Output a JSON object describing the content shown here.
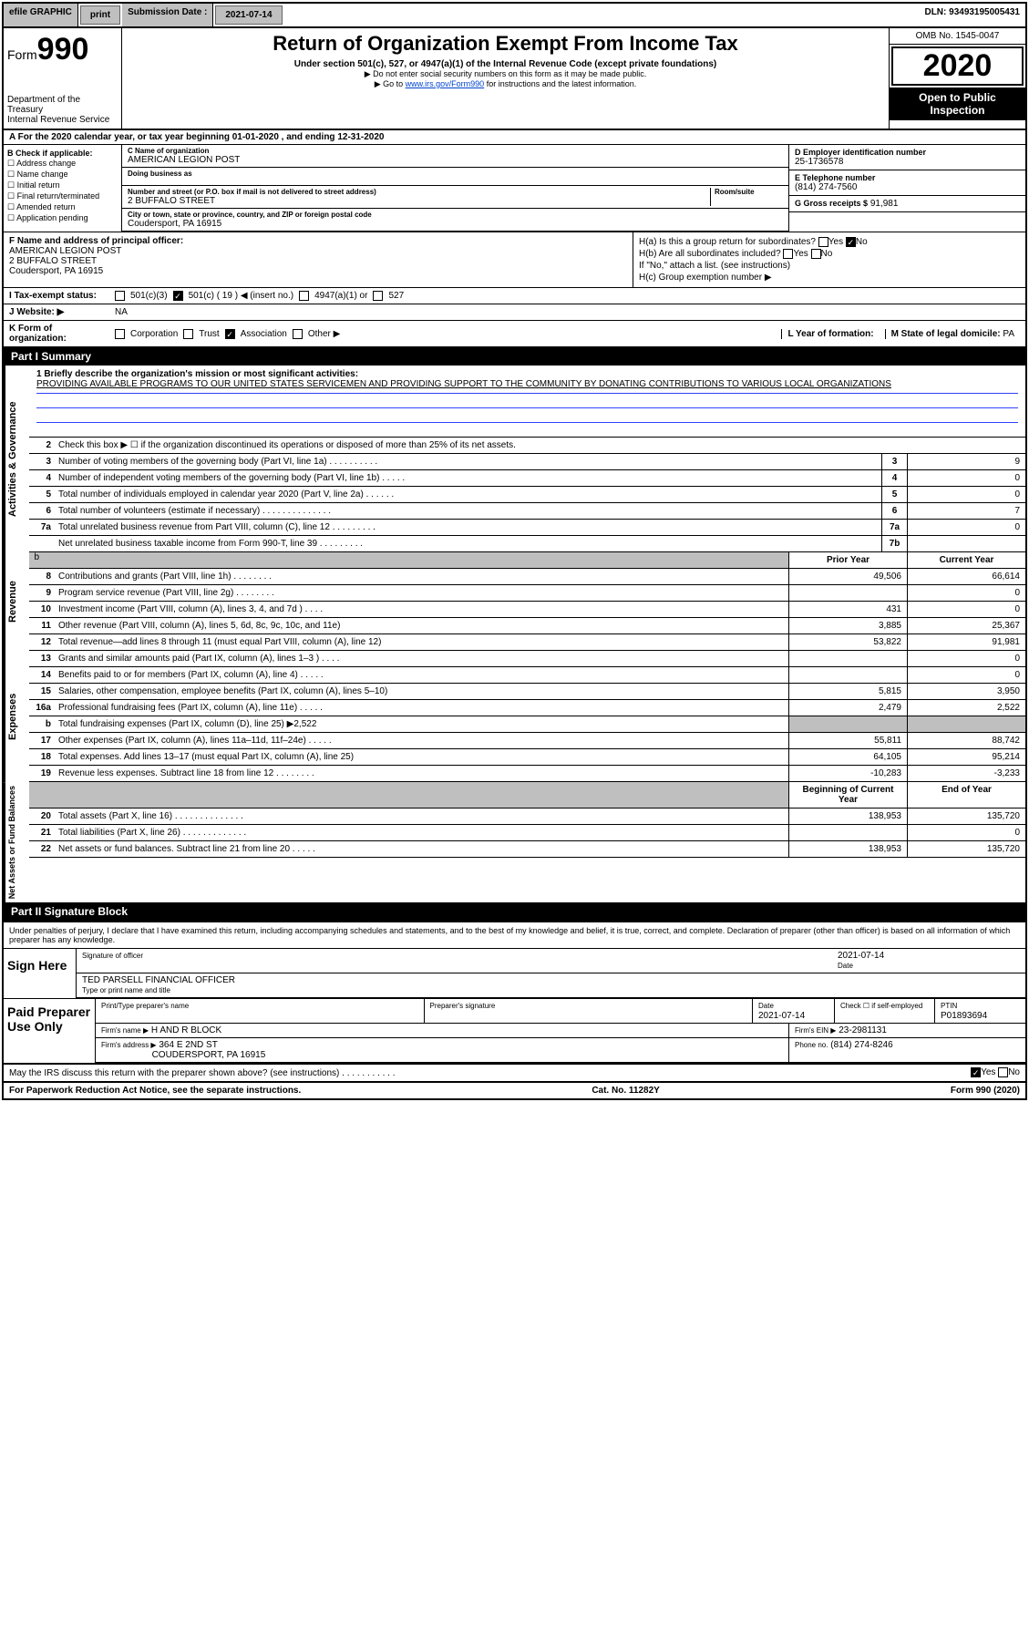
{
  "toolbar": {
    "efile": "efile GRAPHIC",
    "print": "print",
    "sub_lbl": "Submission Date :",
    "sub_val": "2021-07-14",
    "dln": "DLN: 93493195005431"
  },
  "header": {
    "form_prefix": "Form",
    "form_num": "990",
    "dept1": "Department of the Treasury",
    "dept2": "Internal Revenue Service",
    "title": "Return of Organization Exempt From Income Tax",
    "sub1": "Under section 501(c), 527, or 4947(a)(1) of the Internal Revenue Code (except private foundations)",
    "sub2": "▶ Do not enter social security numbers on this form as it may be made public.",
    "sub3a": "▶ Go to ",
    "sub3_link": "www.irs.gov/Form990",
    "sub3b": " for instructions and the latest information.",
    "omb": "OMB No. 1545-0047",
    "year": "2020",
    "open": "Open to Public Inspection"
  },
  "period": "A For the 2020 calendar year, or tax year beginning 01-01-2020   , and ending 12-31-2020",
  "B": {
    "label": "B Check if applicable:",
    "opts": [
      "Address change",
      "Name change",
      "Initial return",
      "Final return/terminated",
      "Amended return",
      "Application pending"
    ]
  },
  "C": {
    "name_lbl": "C Name of organization",
    "name": "AMERICAN LEGION POST",
    "dba_lbl": "Doing business as",
    "addr_lbl": "Number and street (or P.O. box if mail is not delivered to street address)",
    "room_lbl": "Room/suite",
    "addr": "2 BUFFALO STREET",
    "city_lbl": "City or town, state or province, country, and ZIP or foreign postal code",
    "city": "Coudersport, PA  16915"
  },
  "D": {
    "lbl": "D Employer identification number",
    "val": "25-1736578"
  },
  "E": {
    "lbl": "E Telephone number",
    "val": "(814) 274-7560"
  },
  "G": {
    "lbl": "G Gross receipts $",
    "val": "91,981"
  },
  "F": {
    "lbl": "F  Name and address of principal officer:",
    "name": "AMERICAN LEGION POST",
    "addr1": "2 BUFFALO STREET",
    "addr2": "Coudersport, PA  16915"
  },
  "H": {
    "a": "H(a)  Is this a group return for subordinates?",
    "a_no": "No",
    "b": "H(b)  Are all subordinates included?",
    "b_note": "If \"No,\" attach a list. (see instructions)",
    "c": "H(c)  Group exemption number ▶",
    "yes": "Yes",
    "no": "No"
  },
  "I": {
    "lbl": "I   Tax-exempt status:",
    "o1": "501(c)(3)",
    "o2": "501(c) ( 19 ) ◀ (insert no.)",
    "o3": "4947(a)(1) or",
    "o4": "527"
  },
  "J": {
    "lbl": "J   Website: ▶",
    "val": "NA"
  },
  "K": {
    "lbl": "K Form of organization:",
    "o1": "Corporation",
    "o2": "Trust",
    "o3": "Association",
    "o4": "Other ▶"
  },
  "L": {
    "lbl": "L Year of formation:",
    "val": ""
  },
  "M": {
    "lbl": "M State of legal domicile:",
    "val": "PA"
  },
  "partI": {
    "bar": "Part I      Summary",
    "tab_a": "Activities & Governance",
    "tab_r": "Revenue",
    "tab_e": "Expenses",
    "tab_n": "Net Assets or Fund Balances",
    "l1_lbl": "1  Briefly describe the organization's mission or most significant activities:",
    "l1_txt": "PROVIDING AVAILABLE PROGRAMS TO OUR UNITED STATES SERVICEMEN AND PROVIDING SUPPORT TO THE COMMUNITY BY DONATING CONTRIBUTIONS TO VARIOUS LOCAL ORGANIZATIONS",
    "l2": "Check this box ▶ ☐  if the organization discontinued its operations or disposed of more than 25% of its net assets.",
    "rows_act": [
      {
        "n": "3",
        "t": "Number of voting members of the governing body (Part VI, line 1a)  .  .  .  .  .  .  .  .  .  .",
        "b": "3",
        "v": "9"
      },
      {
        "n": "4",
        "t": "Number of independent voting members of the governing body (Part VI, line 1b)  .  .  .  .  .",
        "b": "4",
        "v": "0"
      },
      {
        "n": "5",
        "t": "Total number of individuals employed in calendar year 2020 (Part V, line 2a)  .  .  .  .  .  .",
        "b": "5",
        "v": "0"
      },
      {
        "n": "6",
        "t": "Total number of volunteers (estimate if necessary)   .  .  .  .  .  .  .  .  .  .  .  .  .  .",
        "b": "6",
        "v": "7"
      },
      {
        "n": "7a",
        "t": "Total unrelated business revenue from Part VIII, column (C), line 12  .  .  .  .  .  .  .  .  .",
        "b": "7a",
        "v": "0"
      },
      {
        "n": "",
        "t": "Net unrelated business taxable income from Form 990-T, line 39   .  .  .  .  .  .  .  .  .",
        "b": "7b",
        "v": ""
      }
    ],
    "prior": "Prior Year",
    "curr": "Current Year",
    "rows_rev": [
      {
        "n": "8",
        "t": "Contributions and grants (Part VIII, line 1h)   .   .   .   .   .   .   .   .",
        "p": "49,506",
        "c": "66,614"
      },
      {
        "n": "9",
        "t": "Program service revenue (Part VIII, line 2g)   .   .   .   .   .   .   .   .",
        "p": "",
        "c": "0"
      },
      {
        "n": "10",
        "t": "Investment income (Part VIII, column (A), lines 3, 4, and 7d )   .   .   .   .",
        "p": "431",
        "c": "0"
      },
      {
        "n": "11",
        "t": "Other revenue (Part VIII, column (A), lines 5, 6d, 8c, 9c, 10c, and 11e)",
        "p": "3,885",
        "c": "25,367"
      },
      {
        "n": "12",
        "t": "Total revenue—add lines 8 through 11 (must equal Part VIII, column (A), line 12)",
        "p": "53,822",
        "c": "91,981"
      }
    ],
    "rows_exp": [
      {
        "n": "13",
        "t": "Grants and similar amounts paid (Part IX, column (A), lines 1–3 )  .   .   .   .",
        "p": "",
        "c": "0"
      },
      {
        "n": "14",
        "t": "Benefits paid to or for members (Part IX, column (A), line 4)  .   .   .   .   .",
        "p": "",
        "c": "0"
      },
      {
        "n": "15",
        "t": "Salaries, other compensation, employee benefits (Part IX, column (A), lines 5–10)",
        "p": "5,815",
        "c": "3,950"
      },
      {
        "n": "16a",
        "t": "Professional fundraising fees (Part IX, column (A), line 11e)  .   .   .   .   .",
        "p": "2,479",
        "c": "2,522"
      },
      {
        "n": "b",
        "t": "Total fundraising expenses (Part IX, column (D), line 25) ▶2,522",
        "p": "",
        "c": "",
        "shade": true
      },
      {
        "n": "17",
        "t": "Other expenses (Part IX, column (A), lines 11a–11d, 11f–24e)  .   .   .   .   .",
        "p": "55,811",
        "c": "88,742"
      },
      {
        "n": "18",
        "t": "Total expenses. Add lines 13–17 (must equal Part IX, column (A), line 25)",
        "p": "64,105",
        "c": "95,214"
      },
      {
        "n": "19",
        "t": "Revenue less expenses. Subtract line 18 from line 12  .   .   .   .   .   .   .   .",
        "p": "-10,283",
        "c": "-3,233"
      }
    ],
    "boy": "Beginning of Current Year",
    "eoy": "End of Year",
    "rows_net": [
      {
        "n": "20",
        "t": "Total assets (Part X, line 16)  .   .   .   .   .   .   .   .   .   .   .   .   .   .",
        "p": "138,953",
        "c": "135,720"
      },
      {
        "n": "21",
        "t": "Total liabilities (Part X, line 26)  .   .   .   .   .   .   .   .   .   .   .   .   .",
        "p": "",
        "c": "0"
      },
      {
        "n": "22",
        "t": "Net assets or fund balances. Subtract line 21 from line 20  .   .   .   .   .",
        "p": "138,953",
        "c": "135,720"
      }
    ]
  },
  "partII": {
    "bar": "Part II     Signature Block",
    "decl": "Under penalties of perjury, I declare that I have examined this return, including accompanying schedules and statements, and to the best of my knowledge and belief, it is true, correct, and complete. Declaration of preparer (other than officer) is based on all information of which preparer has any knowledge.",
    "sign_here": "Sign Here",
    "sig_lbl": "Signature of officer",
    "date_lbl": "Date",
    "date_val": "2021-07-14",
    "name_title": "TED PARSELL  FINANCIAL OFFICER",
    "name_title_lbl": "Type or print name and title",
    "paid": "Paid Preparer Use Only",
    "pp_name_lbl": "Print/Type preparer's name",
    "pp_sig_lbl": "Preparer's signature",
    "pp_date_lbl": "Date",
    "pp_date": "2021-07-14",
    "pp_self": "Check ☐ if self-employed",
    "ptin_lbl": "PTIN",
    "ptin": "P01893694",
    "firm_lbl": "Firm's name    ▶",
    "firm": "H AND R BLOCK",
    "ein_lbl": "Firm's EIN ▶",
    "ein": "23-2981131",
    "addr_lbl": "Firm's address ▶",
    "addr1": "364 E 2ND ST",
    "addr2": "COUDERSPORT, PA  16915",
    "ph_lbl": "Phone no.",
    "ph": "(814) 274-8246",
    "discuss": "May the IRS discuss this return with the preparer shown above? (see instructions)   .   .   .   .   .   .   .   .   .   .   .",
    "yes": "Yes",
    "no": "No"
  },
  "footer": {
    "l": "For Paperwork Reduction Act Notice, see the separate instructions.",
    "m": "Cat. No. 11282Y",
    "r": "Form 990 (2020)"
  }
}
